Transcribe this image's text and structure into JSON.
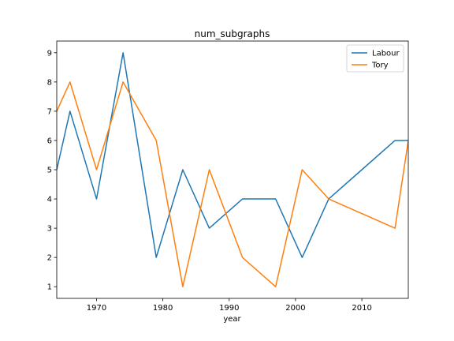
{
  "chart_data": {
    "type": "line",
    "title": "num_subgraphs",
    "xlabel": "year",
    "ylabel": "",
    "xlim": [
      1964,
      2017
    ],
    "ylim": [
      0.6,
      9.4
    ],
    "xticks": [
      1970,
      1980,
      1990,
      2000,
      2010
    ],
    "yticks": [
      1,
      2,
      3,
      4,
      5,
      6,
      7,
      8,
      9
    ],
    "grid": false,
    "legend_position": "top-right",
    "series": [
      {
        "name": "Labour",
        "color": "#1f77b4",
        "x": [
          1964,
          1966,
          1970,
          1974,
          1979,
          1983,
          1987,
          1992,
          1997,
          2001,
          2005,
          2010,
          2015,
          2017
        ],
        "y": [
          5,
          7,
          4,
          9,
          2,
          5,
          3,
          4,
          4,
          2,
          4,
          5,
          6,
          6
        ]
      },
      {
        "name": "Tory",
        "color": "#ff7f0e",
        "x": [
          1964,
          1966,
          1970,
          1974,
          1979,
          1983,
          1987,
          1992,
          1997,
          2001,
          2005,
          2010,
          2015,
          2017
        ],
        "y": [
          7,
          8,
          5,
          8,
          6,
          1,
          5,
          2,
          1,
          5,
          4,
          3.5,
          3,
          6
        ]
      }
    ]
  }
}
